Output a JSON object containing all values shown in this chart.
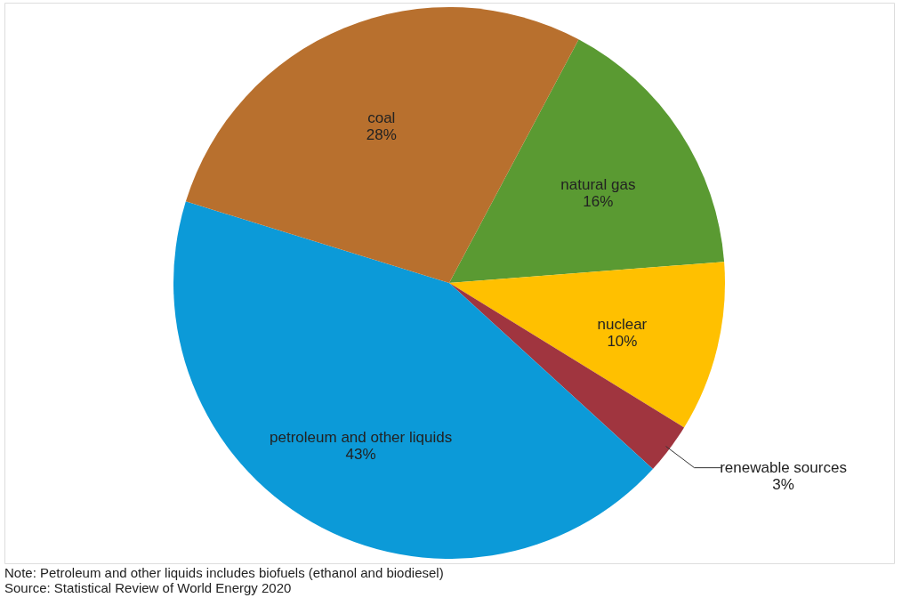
{
  "chart_data": {
    "type": "pie",
    "categories": [
      "natural gas",
      "nuclear",
      "renewable sources",
      "petroleum and other liquids",
      "coal"
    ],
    "values": [
      16,
      10,
      3,
      43,
      28
    ],
    "colors": [
      "#5a9a32",
      "#ffc000",
      "#a0353f",
      "#0c9ad8",
      "#b8702e"
    ],
    "value_labels": [
      "16%",
      "10%",
      "3%",
      "43%",
      "28%"
    ],
    "legend": false,
    "annotations": [
      "Note: Petroleum and other liquids includes biofuels (ethanol and biodiesel)",
      "Source: Statistical Review of World Energy 2020"
    ]
  }
}
